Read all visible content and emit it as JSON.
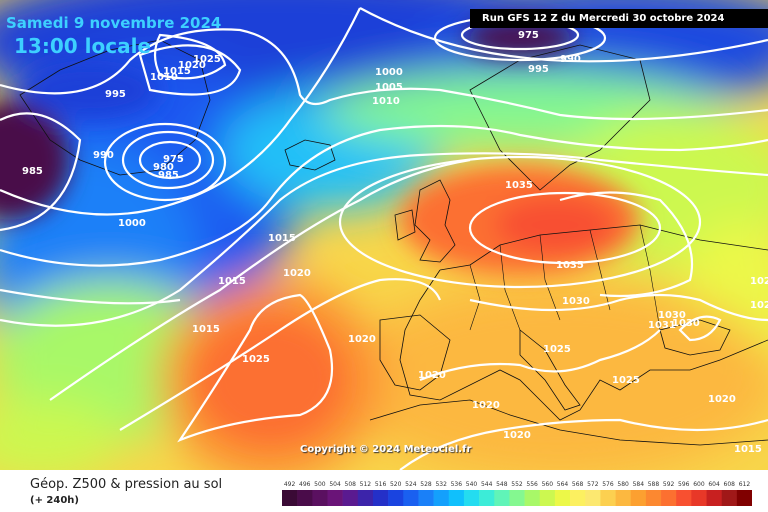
{
  "title": {
    "date": "Samedi 9 novembre 2024",
    "time": "13:00 locale"
  },
  "run": "Run GFS 12 Z du Mercredi 30 octobre 2024",
  "copyright": "Copyright © 2024 Meteociel.fr",
  "legend": {
    "title": "Géop. Z500 & pression au sol",
    "subtitle": "(+ 240h)",
    "ticks": [
      "492",
      "496",
      "500",
      "504",
      "508",
      "512",
      "516",
      "520",
      "524",
      "528",
      "532",
      "536",
      "540",
      "544",
      "548",
      "552",
      "556",
      "560",
      "564",
      "568",
      "572",
      "576",
      "580",
      "584",
      "588",
      "592",
      "596",
      "600",
      "604",
      "608",
      "612"
    ],
    "colors": [
      "#3a0a35",
      "#4a0c4a",
      "#5a1060",
      "#6a1478",
      "#5a1a90",
      "#3c24aa",
      "#2430c8",
      "#1a44e0",
      "#1a60f0",
      "#1a80f8",
      "#14a0fc",
      "#10c0fc",
      "#24dcf0",
      "#3cecd8",
      "#60f4b8",
      "#84f890",
      "#a8f868",
      "#ccf850",
      "#ecf848",
      "#fcf060",
      "#fce870",
      "#fcd050",
      "#fcb840",
      "#fca030",
      "#fc8830",
      "#fc7030",
      "#f85030",
      "#e83828",
      "#c82020",
      "#a01818",
      "#800000"
    ]
  },
  "isobar_labels": [
    "985",
    "975",
    "990",
    "995",
    "1025",
    "1020",
    "1015",
    "1010",
    "1000",
    "1005",
    "1010",
    "995",
    "990",
    "975",
    "980",
    "985",
    "1000",
    "1035",
    "1015",
    "1035",
    "1015",
    "1020",
    "1030",
    "1020",
    "1025",
    "1030",
    "1031",
    "1030",
    "1015",
    "1025",
    "1020",
    "1020",
    "1020",
    "1025",
    "1020",
    "1020",
    "1015",
    "1025"
  ]
}
